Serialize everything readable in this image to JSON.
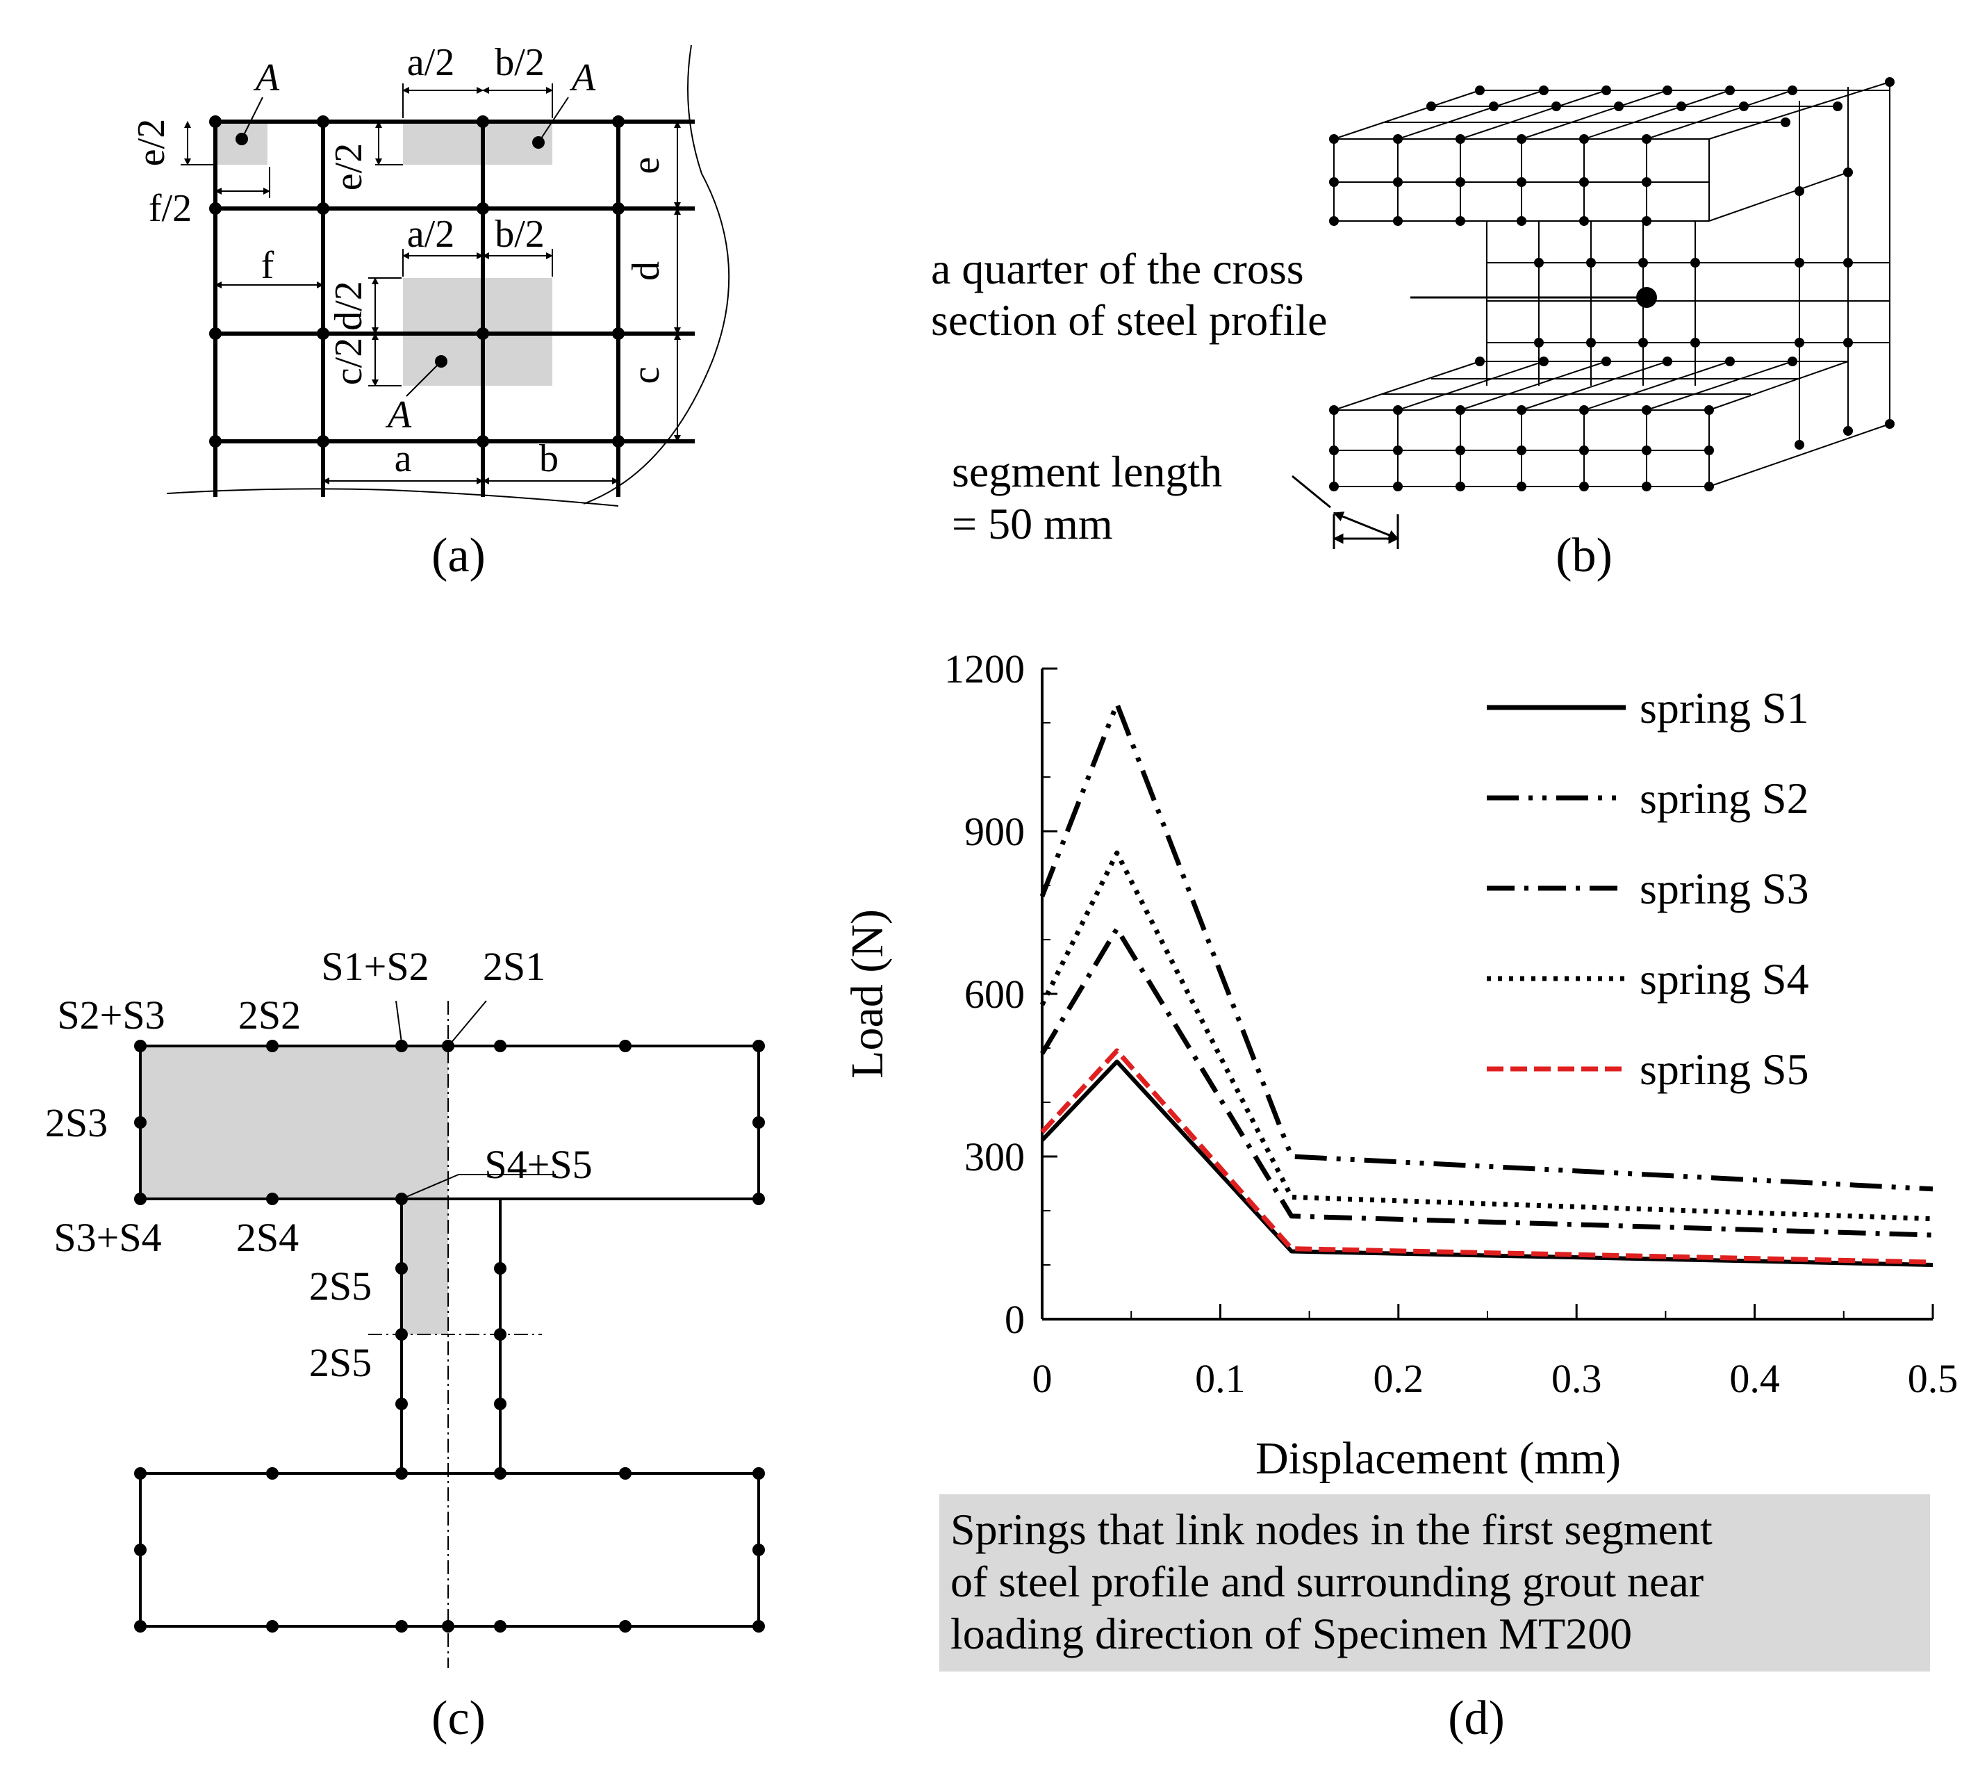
{
  "panels": {
    "a": {
      "caption": "(a)",
      "dims": {
        "e_half_left": "e/2",
        "f_half": "f/2",
        "a_half_top": "a/2",
        "b_half_top": "b/2",
        "e_half_inner": "e/2",
        "e": "e",
        "f": "f",
        "a_half_mid": "a/2",
        "b_half_mid": "b/2",
        "d_half": "d/2",
        "d": "d",
        "c_half": "c/2",
        "c": "c",
        "a": "a",
        "b": "b"
      },
      "area_labels": [
        "A",
        "A",
        "A"
      ]
    },
    "b": {
      "caption": "(b)",
      "annotation": [
        "a quarter of the cross",
        "section of steel profile"
      ],
      "segment_note": [
        "segment length",
        "= 50 mm"
      ]
    },
    "c": {
      "caption": "(c)",
      "labels": {
        "s2s3": "S2+S3",
        "two_s2": "2S2",
        "s1s2": "S1+S2",
        "two_s1": "2S1",
        "two_s3": "2S3",
        "s4s5": "S4+S5",
        "s3s4": "S3+S4",
        "two_s4": "2S4",
        "two_s5_a": "2S5",
        "two_s5_b": "2S5"
      }
    },
    "d": {
      "caption": "(d)",
      "note": [
        "Springs that link nodes in the first segment",
        "of steel profile and surrounding grout near",
        "loading direction of Specimen MT200"
      ],
      "note_bg": "#d9d9d9"
    }
  },
  "chart_data": {
    "type": "line",
    "xlabel": "Displacement (mm)",
    "ylabel": "Load (N)",
    "xlim": [
      0,
      0.5
    ],
    "ylim": [
      0,
      1200
    ],
    "xticks": [
      "0",
      "0.1",
      "0.2",
      "0.3",
      "0.4",
      "0.5"
    ],
    "yticks": [
      "0",
      "300",
      "600",
      "900",
      "1200"
    ],
    "legend_position": "top-right",
    "series": [
      {
        "name": "spring S1",
        "style": "solid",
        "color": "#000000",
        "x": [
          0,
          0.042,
          0.14,
          0.5
        ],
        "y": [
          330,
          475,
          125,
          100
        ]
      },
      {
        "name": "spring S2",
        "style": "dashdotdot",
        "color": "#000000",
        "x": [
          0,
          0.042,
          0.14,
          0.5
        ],
        "y": [
          780,
          1135,
          300,
          240
        ]
      },
      {
        "name": "spring S3",
        "style": "dashdot",
        "color": "#000000",
        "x": [
          0,
          0.042,
          0.14,
          0.5
        ],
        "y": [
          490,
          720,
          190,
          155
        ]
      },
      {
        "name": "spring S4",
        "style": "dotted",
        "color": "#000000",
        "x": [
          0,
          0.042,
          0.14,
          0.5
        ],
        "y": [
          580,
          860,
          225,
          185
        ]
      },
      {
        "name": "spring S5",
        "style": "dashed",
        "color": "#e02020",
        "x": [
          0,
          0.042,
          0.14,
          0.5
        ],
        "y": [
          345,
          495,
          130,
          105
        ]
      }
    ]
  }
}
